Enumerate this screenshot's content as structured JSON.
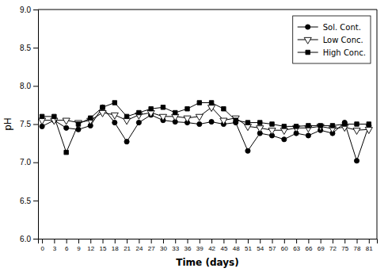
{
  "chart_data": {
    "type": "line",
    "xlabel": "Time (days)",
    "ylabel": "pH",
    "x": [
      0,
      3,
      6,
      9,
      12,
      15,
      18,
      21,
      24,
      27,
      30,
      33,
      36,
      39,
      42,
      45,
      48,
      51,
      54,
      57,
      60,
      63,
      66,
      69,
      72,
      75,
      78,
      81
    ],
    "series": [
      {
        "name": "Sol. Cont.",
        "color": "#000000",
        "marker": "circle",
        "values": [
          7.47,
          7.55,
          7.45,
          7.43,
          7.48,
          7.72,
          7.52,
          7.27,
          7.52,
          7.62,
          7.55,
          7.53,
          7.52,
          7.5,
          7.53,
          7.5,
          7.52,
          7.15,
          7.38,
          7.35,
          7.3,
          7.38,
          7.35,
          7.42,
          7.38,
          7.52,
          7.02,
          7.48
        ]
      },
      {
        "name": "Low Conc.",
        "color": "#000000",
        "marker": "triangle-down-open",
        "values": [
          7.55,
          7.55,
          7.55,
          7.52,
          7.55,
          7.65,
          7.62,
          7.55,
          7.62,
          7.65,
          7.6,
          7.6,
          7.58,
          7.6,
          7.72,
          7.55,
          7.58,
          7.47,
          7.45,
          7.42,
          7.42,
          7.45,
          7.45,
          7.47,
          7.44,
          7.46,
          7.42,
          7.43
        ]
      },
      {
        "name": "High Conc.",
        "color": "#000000",
        "marker": "square",
        "values": [
          7.6,
          7.6,
          7.13,
          7.5,
          7.58,
          7.72,
          7.78,
          7.6,
          7.65,
          7.7,
          7.72,
          7.65,
          7.7,
          7.78,
          7.78,
          7.7,
          7.55,
          7.52,
          7.52,
          7.5,
          7.47,
          7.47,
          7.48,
          7.48,
          7.48,
          7.5,
          7.5,
          7.5
        ]
      }
    ],
    "xlim": [
      -1,
      83
    ],
    "ylim": [
      6,
      9
    ],
    "xticks": [
      0,
      3,
      6,
      9,
      12,
      15,
      18,
      21,
      24,
      27,
      30,
      33,
      36,
      39,
      42,
      45,
      48,
      51,
      54,
      57,
      60,
      63,
      66,
      69,
      72,
      75,
      78,
      81
    ],
    "yticks": [
      {
        "value": 6,
        "label": "6.0"
      },
      6.5,
      {
        "value": 7,
        "label": "7.0"
      },
      7.5,
      {
        "value": 8,
        "label": "8.0"
      },
      8.5,
      {
        "value": 9,
        "label": "9.0"
      }
    ],
    "grid": false,
    "legend": "upper right"
  }
}
